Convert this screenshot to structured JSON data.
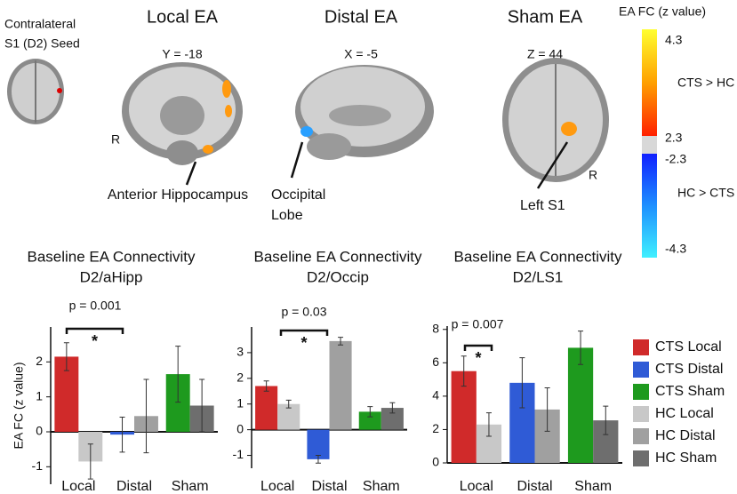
{
  "figure": {
    "seed_label": [
      "Contralateral",
      "S1 (D2) Seed"
    ],
    "panels": [
      {
        "title": "Local EA",
        "color": "#c0272d",
        "coord": "Y = -18",
        "side": "R",
        "annotation": "Anterior Hippocampus"
      },
      {
        "title": "Distal EA",
        "color": "#2f5bd6",
        "coord": "X = -5",
        "annotation": [
          "Occipital",
          "Lobe"
        ]
      },
      {
        "title": "Sham EA",
        "color": "#1e9a1e",
        "coord": "Z = 44",
        "side": "R",
        "annotation": "Left S1"
      }
    ],
    "colorbar": {
      "title": "EA FC (z value)",
      "ticks": [
        4.3,
        2.3,
        -2.3,
        -4.3
      ],
      "labels": [
        "CTS > HC",
        "HC > CTS"
      ]
    }
  },
  "chart_data": [
    {
      "type": "bar",
      "title": "Baseline EA Connectivity",
      "subtitle": "D2/aHipp",
      "y_label": "EA FC (z value)",
      "categories": [
        "Local",
        "Distal",
        "Sham"
      ],
      "category_colors": [
        "#c0272d",
        "#2f5bd6",
        "#1e9a1e"
      ],
      "ylim": [
        -1.5,
        3
      ],
      "yticks": [
        -1,
        0,
        1,
        2
      ],
      "annotation": {
        "text": "p = 0.001",
        "mark": "*"
      },
      "series": [
        {
          "color": "#d02a2a",
          "values": [
            2.15,
            null,
            null
          ],
          "errors": [
            0.4,
            null,
            null
          ]
        },
        {
          "color": "#2f5bd6",
          "values": [
            null,
            -0.08,
            null
          ],
          "errors": [
            null,
            0.5,
            null
          ]
        },
        {
          "color": "#1e9a1e",
          "values": [
            null,
            null,
            1.65
          ],
          "errors": [
            null,
            null,
            0.8
          ]
        },
        {
          "color": "#c8c8c8",
          "values": [
            -0.85,
            null,
            null
          ],
          "errors": [
            0.5,
            null,
            null
          ]
        },
        {
          "color": "#a0a0a0",
          "values": [
            null,
            0.45,
            null
          ],
          "errors": [
            null,
            1.05,
            null
          ]
        },
        {
          "color": "#6e6e6e",
          "values": [
            null,
            null,
            0.75
          ],
          "errors": [
            null,
            null,
            0.75
          ]
        }
      ]
    },
    {
      "type": "bar",
      "title": "Baseline EA Connectivity",
      "subtitle": "D2/Occip",
      "categories": [
        "Local",
        "Distal",
        "Sham"
      ],
      "category_colors": [
        "#c0272d",
        "#2f5bd6",
        "#1e9a1e"
      ],
      "ylim": [
        -1.5,
        4
      ],
      "yticks": [
        -1,
        0,
        1,
        2,
        3
      ],
      "annotation": {
        "text": "p = 0.03",
        "mark": "*"
      },
      "series": [
        {
          "color": "#d02a2a",
          "values": [
            1.7,
            null,
            null
          ],
          "errors": [
            0.2,
            null,
            null
          ]
        },
        {
          "color": "#2f5bd6",
          "values": [
            null,
            -1.15,
            null
          ],
          "errors": [
            null,
            0.15,
            null
          ]
        },
        {
          "color": "#1e9a1e",
          "values": [
            null,
            null,
            0.7
          ],
          "errors": [
            null,
            null,
            0.2
          ]
        },
        {
          "color": "#c8c8c8",
          "values": [
            1.0,
            null,
            null
          ],
          "errors": [
            0.15,
            null,
            null
          ]
        },
        {
          "color": "#a0a0a0",
          "values": [
            null,
            3.45,
            null
          ],
          "errors": [
            null,
            0.15,
            null
          ]
        },
        {
          "color": "#6e6e6e",
          "values": [
            null,
            null,
            0.85
          ],
          "errors": [
            null,
            null,
            0.2
          ]
        }
      ]
    },
    {
      "type": "bar",
      "title": "Baseline EA Connectivity",
      "subtitle": "D2/LS1",
      "categories": [
        "Local",
        "Distal",
        "Sham"
      ],
      "category_colors": [
        "#c0272d",
        "#2f5bd6",
        "#1e9a1e"
      ],
      "ylim": [
        0,
        8.2
      ],
      "yticks": [
        0,
        2,
        4,
        6,
        8
      ],
      "annotation": {
        "text": "p = 0.007",
        "mark": "*"
      },
      "series": [
        {
          "name": "CTS Local",
          "color": "#d02a2a",
          "values": [
            5.5,
            null,
            null
          ],
          "errors": [
            0.9,
            null,
            null
          ]
        },
        {
          "name": "CTS Distal",
          "color": "#2f5bd6",
          "values": [
            null,
            4.8,
            null
          ],
          "errors": [
            null,
            1.5,
            null
          ]
        },
        {
          "name": "CTS Sham",
          "color": "#1e9a1e",
          "values": [
            null,
            null,
            6.9
          ],
          "errors": [
            null,
            null,
            1.0
          ]
        },
        {
          "name": "HC Local",
          "color": "#c8c8c8",
          "values": [
            2.3,
            null,
            null
          ],
          "errors": [
            0.7,
            null,
            null
          ]
        },
        {
          "name": "HC Distal",
          "color": "#a0a0a0",
          "values": [
            null,
            3.2,
            null
          ],
          "errors": [
            null,
            1.3,
            null
          ]
        },
        {
          "name": "HC Sham",
          "color": "#6e6e6e",
          "values": [
            null,
            null,
            2.55
          ],
          "errors": [
            null,
            null,
            0.85
          ]
        }
      ]
    }
  ]
}
